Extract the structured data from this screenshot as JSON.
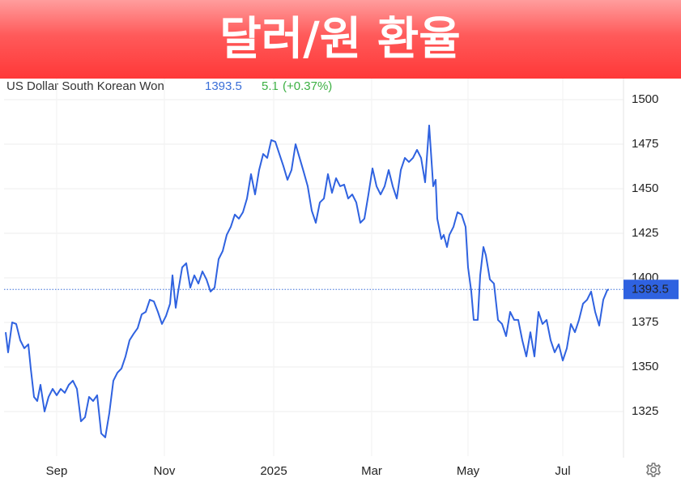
{
  "chart_data": {
    "type": "line",
    "title": "달러/원 환율",
    "price": 1393.5,
    "change": 5.1,
    "change_percent": "(+0.37%)",
    "x": [
      0.8,
      2,
      4,
      6,
      8,
      10,
      12,
      13.2,
      14.8,
      16.4,
      18,
      20,
      22,
      24,
      26,
      28,
      30,
      32,
      34,
      36,
      38,
      40,
      42,
      44,
      46,
      48,
      50,
      52,
      54,
      56,
      58,
      60,
      62,
      64,
      66,
      68,
      70,
      72,
      74,
      76,
      78,
      80,
      82,
      83.2,
      84.8,
      86,
      88,
      90,
      92,
      94,
      96,
      98,
      100,
      102,
      104,
      106,
      108,
      110,
      112,
      114,
      116,
      118,
      120,
      122,
      124,
      126,
      128,
      130,
      132,
      134,
      136,
      138,
      140,
      142,
      144,
      146,
      148,
      150,
      152,
      154,
      156,
      158,
      160,
      162,
      164,
      166,
      168,
      170,
      172,
      174,
      176,
      178,
      180,
      182,
      184,
      186,
      188,
      190,
      192,
      194,
      196,
      198,
      200,
      202,
      204,
      206,
      208,
      210,
      212,
      213.2,
      214,
      216,
      217.2,
      218.8,
      220,
      222,
      224,
      226,
      228,
      229.2,
      230.8,
      232,
      234,
      235.2,
      236.8,
      238,
      240,
      242,
      244,
      246,
      248,
      250,
      252,
      254,
      256,
      258,
      260,
      262,
      264,
      266,
      268,
      270,
      272,
      274,
      276,
      278,
      280,
      282,
      284,
      286,
      288,
      290,
      292,
      294,
      296,
      298,
      298.8
    ],
    "series": [
      {
        "name": "US Dollar South Korean Won",
        "color": "#2f62e0",
        "values": [
          1369.5,
          1358.2,
          1375,
          1374.1,
          1365,
          1360.5,
          1362.7,
          1349.1,
          1333.2,
          1330.9,
          1340,
          1325,
          1333.2,
          1337.7,
          1334.1,
          1337.7,
          1335.5,
          1340,
          1342.3,
          1337.7,
          1319.5,
          1321.8,
          1333.2,
          1330.9,
          1334.1,
          1312.7,
          1310.5,
          1324.1,
          1342.3,
          1346.8,
          1349.1,
          1355.9,
          1365,
          1368.6,
          1371.8,
          1379.5,
          1380.9,
          1387.7,
          1386.8,
          1380.9,
          1374.1,
          1378.6,
          1385.5,
          1401.4,
          1383.2,
          1392.3,
          1405.9,
          1408.2,
          1394.5,
          1401.4,
          1396.8,
          1403.6,
          1399.1,
          1392.3,
          1394.5,
          1410.5,
          1415,
          1424.1,
          1428.6,
          1435.5,
          1433.2,
          1436.8,
          1444.5,
          1458.2,
          1446.8,
          1460.5,
          1469.5,
          1467.3,
          1477.3,
          1476.4,
          1469.5,
          1462.7,
          1455,
          1460.5,
          1475,
          1467.3,
          1459.5,
          1451.4,
          1437.7,
          1430.9,
          1442.3,
          1444.5,
          1458.2,
          1447.7,
          1455.9,
          1451.4,
          1452.3,
          1444.5,
          1446.8,
          1442.3,
          1430.9,
          1433.2,
          1446.8,
          1461.4,
          1451.4,
          1446.8,
          1451.4,
          1460.5,
          1451.4,
          1444.5,
          1460.5,
          1467.3,
          1465,
          1467.3,
          1471.8,
          1467.3,
          1453.6,
          1485.5,
          1451.4,
          1455,
          1433.2,
          1421.8,
          1424.1,
          1417.3,
          1424.1,
          1428.6,
          1436.8,
          1435.5,
          1428.6,
          1405.9,
          1392.3,
          1376.4,
          1376.4,
          1401.4,
          1417.3,
          1412.7,
          1399.1,
          1396.8,
          1376.4,
          1374.1,
          1367.3,
          1380.9,
          1376.4,
          1376.4,
          1365,
          1355.9,
          1369.5,
          1355.9,
          1380.9,
          1374.1,
          1376.4,
          1365,
          1358.2,
          1362.7,
          1353.6,
          1360.5,
          1374.1,
          1369.5,
          1376.4,
          1385.5,
          1387.7,
          1392.3,
          1380.9,
          1373.2,
          1387.7,
          1393.2,
          1393.5
        ]
      }
    ],
    "xlim": [
      0,
      306
    ],
    "xticks": [
      {
        "value": 26,
        "label": "Sep"
      },
      {
        "value": 79.2,
        "label": "Nov"
      },
      {
        "value": 133.2,
        "label": "2025"
      },
      {
        "value": 181.6,
        "label": "Mar"
      },
      {
        "value": 229.2,
        "label": "May"
      },
      {
        "value": 276,
        "label": "Jul"
      }
    ],
    "ylim": [
      1300,
      1511.8
    ],
    "yticks": [
      1325,
      1350,
      1375,
      1400,
      1425,
      1450,
      1475,
      1500
    ],
    "grid": true
  }
}
